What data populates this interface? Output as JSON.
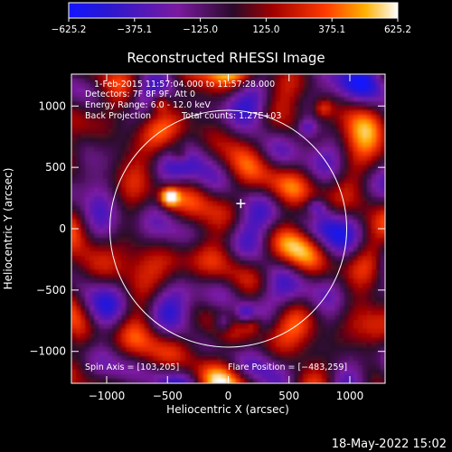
{
  "chart_data": {
    "type": "heatmap",
    "title": "Reconstructed RHESSI Image",
    "xlabel": "Heliocentric X (arcsec)",
    "ylabel": "Heliocentric Y (arcsec)",
    "xlim": [
      -1290,
      1290
    ],
    "ylim": [
      -1260,
      1260
    ],
    "x_ticks": [
      -1000,
      -500,
      0,
      500,
      1000
    ],
    "y_ticks": [
      -1000,
      -500,
      0,
      500,
      1000
    ],
    "x_tick_labels": [
      "−1000",
      "−500",
      "0",
      "500",
      "1000"
    ],
    "y_tick_labels": [
      "−1000",
      "−500",
      "0",
      "500",
      "1000"
    ],
    "colorbar": {
      "range": [
        -625.2,
        625.2
      ],
      "ticks": [
        -625.2,
        -375.1,
        -125.0,
        125.0,
        375.1,
        625.2
      ],
      "tick_labels": [
        "−625.2",
        "−375.1",
        "−125.0",
        "125.0",
        "375.1",
        "625.2"
      ]
    },
    "annotations": {
      "lines": [
        "1-Feb-2015 11:57:04.000 to 11:57:28.000",
        "Detectors: 7F 8F 9F, Att 0",
        "Energy Range: 6.0 - 12.0 keV",
        "Back Projection",
        "Total counts: 1.27E+03"
      ],
      "spin_axis": "Spin Axis = [103,205]",
      "flare_position": "Flare Position = [−483,259]"
    },
    "solar_limb_radius": 974,
    "marker": {
      "x": 103,
      "y": 205
    },
    "bright_sources": [
      {
        "x": -483,
        "y": 259,
        "value": 625
      },
      {
        "x": -560,
        "y": 1030,
        "value": 380
      },
      {
        "x": 700,
        "y": 120,
        "value": 300
      },
      {
        "x": 780,
        "y": 980,
        "value": 330
      },
      {
        "x": -400,
        "y": 600,
        "value": 300
      },
      {
        "x": 200,
        "y": -780,
        "value": 240
      }
    ],
    "dim_sources": [
      {
        "x": 720,
        "y": 160,
        "value": -420
      },
      {
        "x": 650,
        "y": 820,
        "value": -350
      },
      {
        "x": -40,
        "y": -770,
        "value": -350
      },
      {
        "x": 140,
        "y": -690,
        "value": -330
      }
    ]
  },
  "footer": {
    "timestamp": "18-May-2022 15:02"
  }
}
